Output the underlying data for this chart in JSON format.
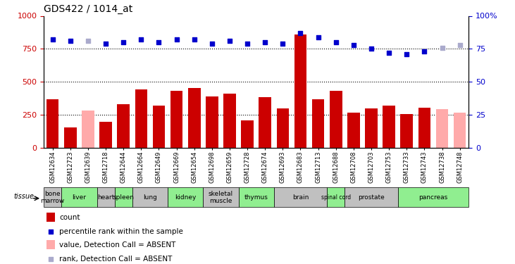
{
  "title": "GDS422 / 1014_at",
  "samples": [
    "GSM12634",
    "GSM12723",
    "GSM12639",
    "GSM12718",
    "GSM12644",
    "GSM12664",
    "GSM12649",
    "GSM12669",
    "GSM12654",
    "GSM12698",
    "GSM12659",
    "GSM12728",
    "GSM12674",
    "GSM12693",
    "GSM12683",
    "GSM12713",
    "GSM12688",
    "GSM12708",
    "GSM12703",
    "GSM12753",
    "GSM12733",
    "GSM12743",
    "GSM12738",
    "GSM12748"
  ],
  "bar_values": [
    370,
    155,
    285,
    200,
    330,
    445,
    320,
    430,
    455,
    390,
    410,
    210,
    385,
    300,
    860,
    370,
    430,
    265,
    300,
    320,
    255,
    305,
    295,
    265
  ],
  "bar_absent": [
    false,
    false,
    true,
    false,
    false,
    false,
    false,
    false,
    false,
    false,
    false,
    false,
    false,
    false,
    false,
    false,
    false,
    false,
    false,
    false,
    false,
    false,
    true,
    true
  ],
  "rank_values": [
    82,
    81,
    81,
    79,
    80,
    82,
    80,
    82,
    82,
    79,
    81,
    79,
    80,
    79,
    87,
    84,
    80,
    78,
    75,
    72,
    71,
    73,
    76,
    78
  ],
  "rank_absent": [
    false,
    false,
    true,
    false,
    false,
    false,
    false,
    false,
    false,
    false,
    false,
    false,
    false,
    false,
    false,
    false,
    false,
    false,
    false,
    false,
    false,
    false,
    true,
    true
  ],
  "tissues": [
    {
      "name": "bone\nmarrow",
      "start": 0,
      "end": 1,
      "color": "#c0c0c0"
    },
    {
      "name": "liver",
      "start": 1,
      "end": 3,
      "color": "#90ee90"
    },
    {
      "name": "heart",
      "start": 3,
      "end": 4,
      "color": "#c0c0c0"
    },
    {
      "name": "spleen",
      "start": 4,
      "end": 5,
      "color": "#90ee90"
    },
    {
      "name": "lung",
      "start": 5,
      "end": 7,
      "color": "#c0c0c0"
    },
    {
      "name": "kidney",
      "start": 7,
      "end": 9,
      "color": "#90ee90"
    },
    {
      "name": "skeletal\nmuscle",
      "start": 9,
      "end": 11,
      "color": "#c0c0c0"
    },
    {
      "name": "thymus",
      "start": 11,
      "end": 13,
      "color": "#90ee90"
    },
    {
      "name": "brain",
      "start": 13,
      "end": 16,
      "color": "#c0c0c0"
    },
    {
      "name": "spinal cord",
      "start": 16,
      "end": 17,
      "color": "#90ee90"
    },
    {
      "name": "prostate",
      "start": 17,
      "end": 20,
      "color": "#c0c0c0"
    },
    {
      "name": "pancreas",
      "start": 20,
      "end": 24,
      "color": "#90ee90"
    }
  ],
  "ylim_left": [
    0,
    1000
  ],
  "ylim_right": [
    0,
    100
  ],
  "yticks_left": [
    0,
    250,
    500,
    750,
    1000
  ],
  "yticks_right": [
    0,
    25,
    50,
    75,
    100
  ],
  "bar_color": "#cc0000",
  "bar_absent_color": "#ffaaaa",
  "rank_color": "#0000cc",
  "rank_absent_color": "#aaaacc",
  "legend": [
    {
      "label": "count",
      "color": "#cc0000",
      "type": "rect"
    },
    {
      "label": "percentile rank within the sample",
      "color": "#0000cc",
      "type": "square"
    },
    {
      "label": "value, Detection Call = ABSENT",
      "color": "#ffaaaa",
      "type": "rect"
    },
    {
      "label": "rank, Detection Call = ABSENT",
      "color": "#aaaacc",
      "type": "square"
    }
  ]
}
